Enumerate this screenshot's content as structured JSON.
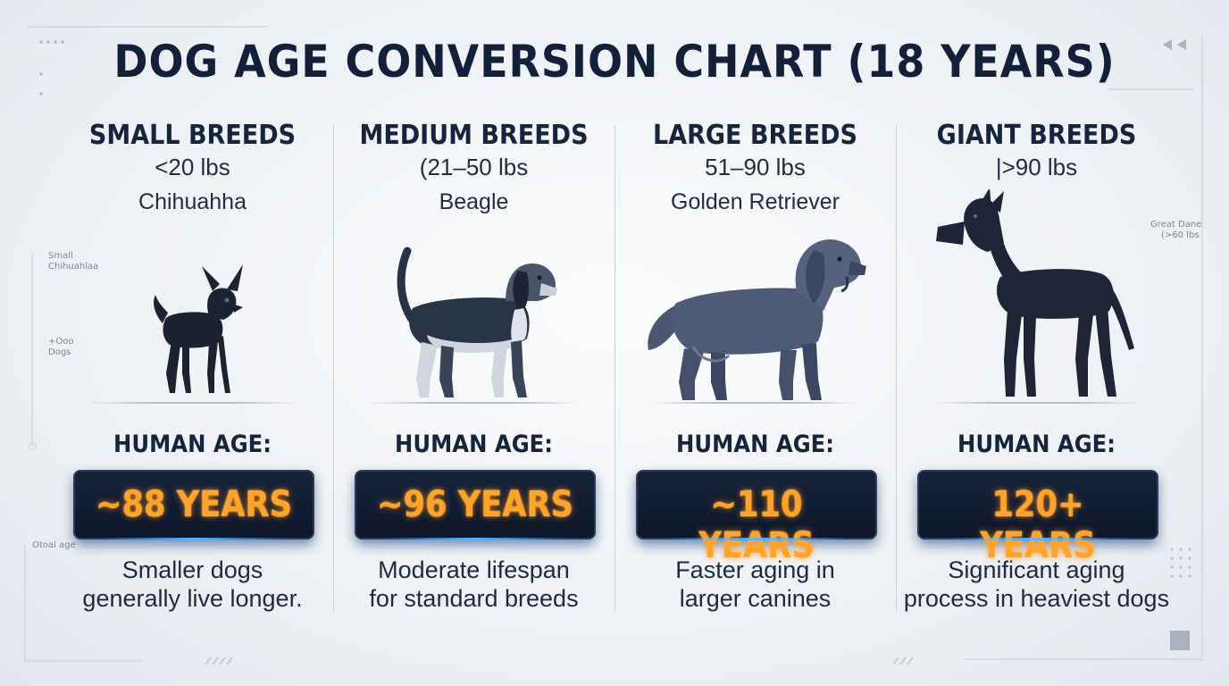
{
  "title": "DOG AGE CONVERSION CHART (18 YEARS)",
  "colors": {
    "age_text": "#ffa42a",
    "age_box": "#111c30",
    "dog_dark": "#1b2333",
    "glow": "#5ab4ff"
  },
  "breeds": [
    {
      "name": "SMALL BREEDS",
      "weight": "<20 lbs",
      "example": "Chihuahha",
      "human_age_label": "HUMAN AGE:",
      "age": "~88 YEARS",
      "note_line1": "Smaller dogs",
      "note_line2": "generally live longer.",
      "icon": "chihuahua-silhouette"
    },
    {
      "name": "MEDIUM BREEDS",
      "weight": "(21–50 lbs",
      "example": "Beagle",
      "human_age_label": "HUMAN AGE:",
      "age": "~96 YEARS",
      "note_line1": "Moderate lifespan",
      "note_line2": "for standard breeds",
      "icon": "beagle-silhouette"
    },
    {
      "name": "LARGE BREEDS",
      "weight": "51–90 lbs",
      "example": "Golden Retriever",
      "human_age_label": "HUMAN AGE:",
      "age": "~110 YEARS",
      "note_line1": "Faster aging in",
      "note_line2": "larger canines",
      "icon": "golden-retriever-silhouette"
    },
    {
      "name": "GIANT BREEDS",
      "weight": "|>90 lbs",
      "example": "",
      "human_age_label": "HUMAN AGE:",
      "age": "120+ YEARS",
      "note_line1": "Significant aging",
      "note_line2": "process in heaviest dogs",
      "icon": "great-dane-silhouette"
    }
  ],
  "side_notes": {
    "left_1a": "Small",
    "left_1b": "Chihuahlaa",
    "left_2a": "+Ooo",
    "left_2b": "Dogs",
    "left_3": "Otoal age",
    "right_1a": "Great Dane",
    "right_1b": "(>60 lbs"
  }
}
